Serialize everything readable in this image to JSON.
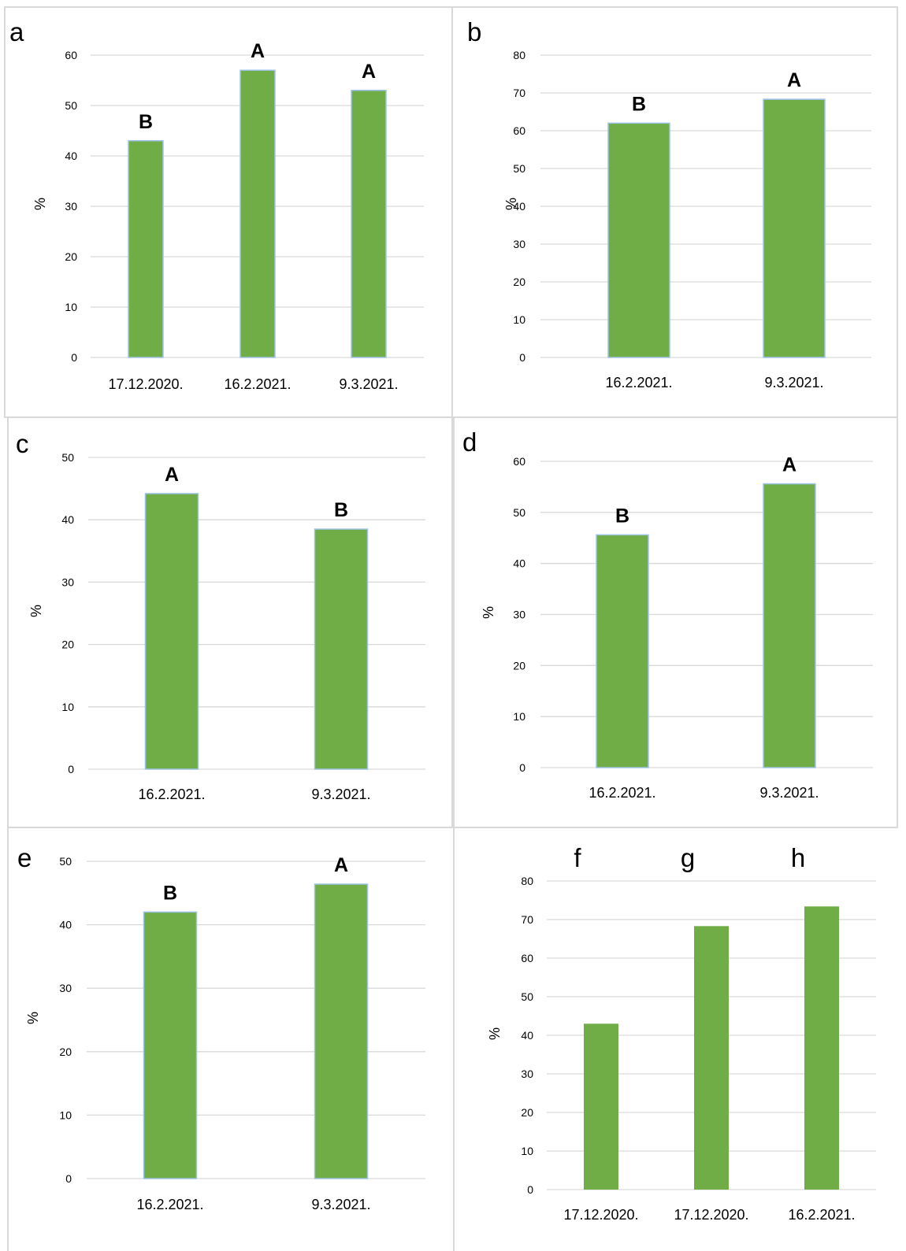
{
  "colors": {
    "bar": "#70ad47",
    "bar_outline": "#9dc3e6",
    "grid": "#d9d9d9"
  },
  "chart_data": [
    {
      "panel": "a",
      "type": "bar",
      "categories": [
        "17.12.2020.",
        "16.2.2021.",
        "9.3.2021."
      ],
      "values": [
        43,
        57,
        53
      ],
      "significance": [
        "B",
        "A",
        "A"
      ],
      "ylabel": "%",
      "ylim": [
        0,
        60
      ],
      "yticks": [
        0,
        10,
        20,
        30,
        40,
        50,
        60
      ],
      "grid": true
    },
    {
      "panel": "b",
      "type": "bar",
      "categories": [
        "16.2.2021.",
        "9.3.2021."
      ],
      "values": [
        62,
        68.3
      ],
      "significance": [
        "B",
        "A"
      ],
      "ylabel": "%",
      "ylim": [
        0,
        80
      ],
      "yticks": [
        0,
        10,
        20,
        30,
        40,
        50,
        60,
        70,
        80
      ],
      "grid": true
    },
    {
      "panel": "c",
      "type": "bar",
      "categories": [
        "16.2.2021.",
        "9.3.2021."
      ],
      "values": [
        44.2,
        38.5
      ],
      "significance": [
        "A",
        "B"
      ],
      "ylabel": "%",
      "ylim": [
        0,
        50
      ],
      "yticks": [
        0,
        10,
        20,
        30,
        40,
        50
      ],
      "grid": true
    },
    {
      "panel": "d",
      "type": "bar",
      "categories": [
        "16.2.2021.",
        "9.3.2021."
      ],
      "values": [
        45.6,
        55.6
      ],
      "significance": [
        "B",
        "A"
      ],
      "ylabel": "%",
      "ylim": [
        0,
        60
      ],
      "yticks": [
        0,
        10,
        20,
        30,
        40,
        50,
        60
      ],
      "grid": true
    },
    {
      "panel": "e",
      "type": "bar",
      "categories": [
        "16.2.2021.",
        "9.3.2021."
      ],
      "values": [
        42,
        46.4
      ],
      "significance": [
        "B",
        "A"
      ],
      "ylabel": "%",
      "ylim": [
        0,
        50
      ],
      "yticks": [
        0,
        10,
        20,
        30,
        40,
        50
      ],
      "grid": true
    },
    {
      "panel": "",
      "type": "bar",
      "bar_letters": [
        "f",
        "g",
        "h"
      ],
      "categories": [
        "17.12.2020.",
        "17.12.2020.",
        "16.2.2021."
      ],
      "values": [
        43,
        68.3,
        73.4
      ],
      "significance": [
        "",
        "",
        ""
      ],
      "ylabel": "%",
      "ylim": [
        0,
        80
      ],
      "yticks": [
        0,
        10,
        20,
        30,
        40,
        50,
        60,
        70,
        80
      ],
      "grid": true
    }
  ]
}
